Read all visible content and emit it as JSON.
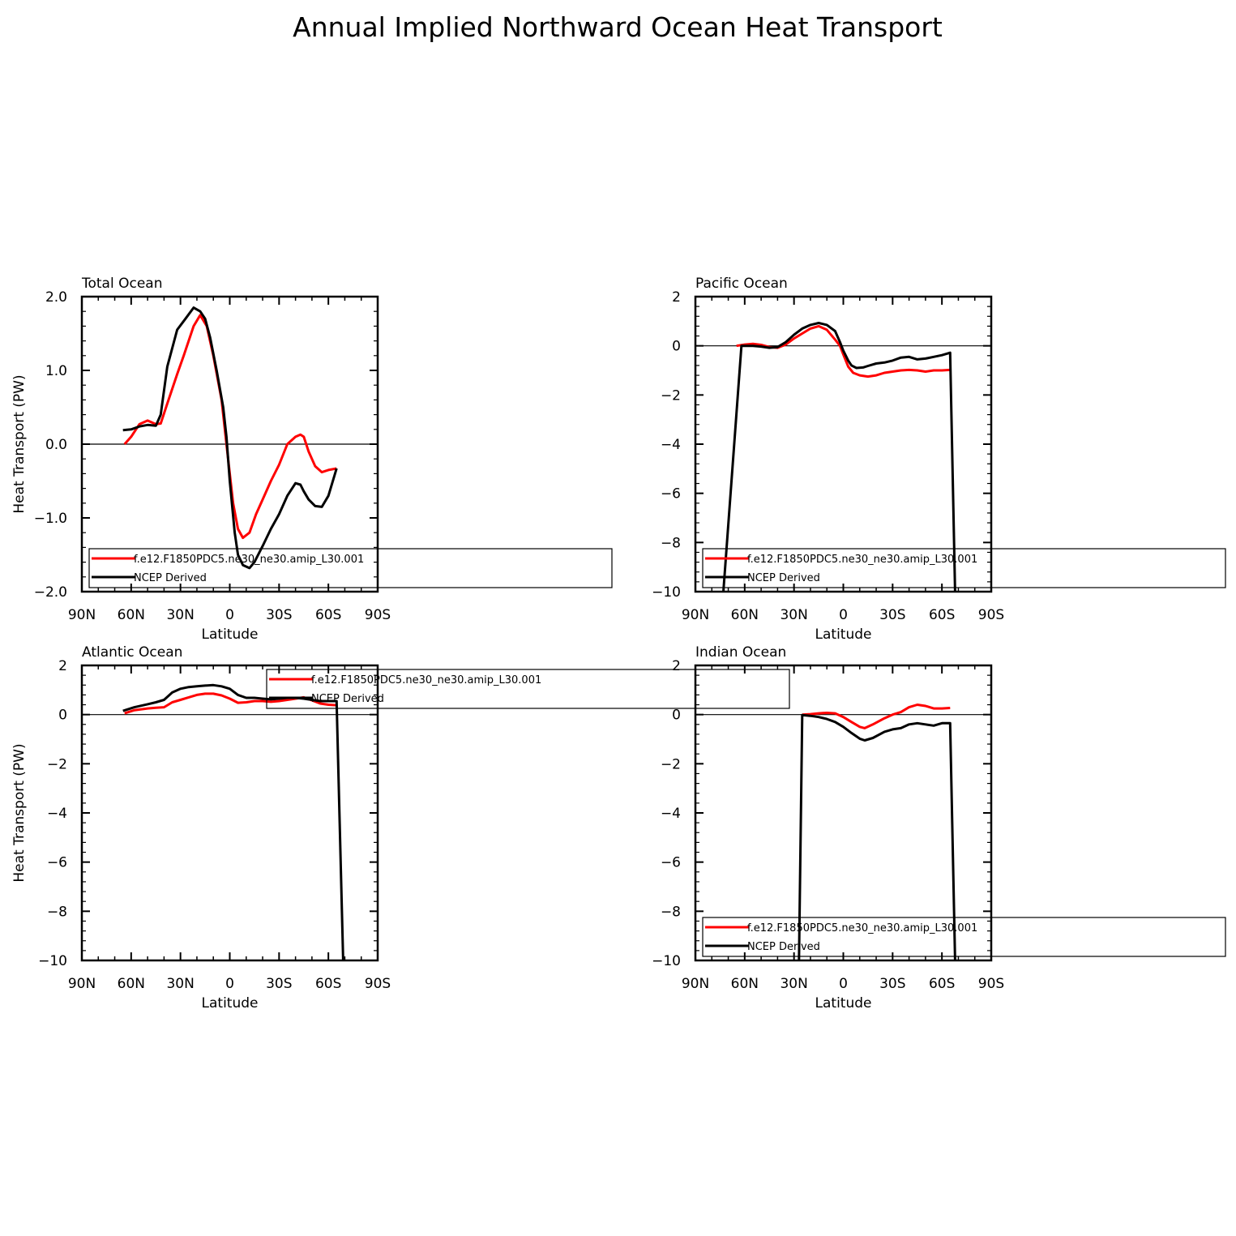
{
  "figure": {
    "title": "Annual Implied Northward Ocean Heat Transport"
  },
  "chart_data": [
    {
      "type": "line",
      "title": "Total Ocean",
      "xlabel": "Latitude",
      "ylabel": "Heat Transport (PW)",
      "xlim": [
        90,
        -90
      ],
      "ylim": [
        -2,
        2
      ],
      "xticks": [
        90,
        60,
        30,
        0,
        -30,
        -60,
        -90
      ],
      "xtick_labels": [
        "90N",
        "60N",
        "30N",
        "0",
        "30S",
        "60S",
        "90S"
      ],
      "yticks": [
        -2,
        -1,
        0,
        1,
        2
      ],
      "ytick_labels": [
        "−2.0",
        "−1.0",
        "0.0",
        "1.0",
        "2.0"
      ],
      "zero_line": true,
      "legend": [
        "f.e12.F1850PDC5.ne30_ne30.amip_L30.001",
        "NCEP Derived"
      ],
      "legend_position": "bottom-left",
      "series": [
        {
          "name": "f.e12.F1850PDC5.ne30_ne30.amip_L30.001",
          "color": "#ff0000",
          "x": [
            64,
            60,
            55,
            50,
            45,
            42,
            38,
            32,
            28,
            22,
            18,
            14,
            10,
            5,
            2,
            -2,
            -5,
            -8,
            -12,
            -16,
            -20,
            -25,
            -30,
            -35,
            -40,
            -43,
            -45,
            -48,
            -52,
            -56,
            -60,
            -65
          ],
          "y": [
            0,
            0.1,
            0.27,
            0.32,
            0.27,
            0.28,
            0.55,
            0.95,
            1.2,
            1.6,
            1.75,
            1.6,
            1.2,
            0.6,
            0.0,
            -0.8,
            -1.15,
            -1.27,
            -1.2,
            -0.95,
            -0.75,
            -0.5,
            -0.28,
            0.0,
            0.1,
            0.13,
            0.1,
            -0.1,
            -0.3,
            -0.38,
            -0.35,
            -0.33
          ]
        },
        {
          "name": "NCEP Derived",
          "color": "#000000",
          "x": [
            65,
            60,
            55,
            50,
            45,
            42,
            38,
            32,
            27,
            22,
            18,
            15,
            12,
            8,
            4,
            2,
            0,
            -3,
            -5,
            -8,
            -12,
            -15,
            -20,
            -25,
            -30,
            -35,
            -40,
            -43,
            -45,
            -48,
            -52,
            -56,
            -60,
            -65
          ],
          "y": [
            0.19,
            0.2,
            0.24,
            0.26,
            0.25,
            0.4,
            1.05,
            1.55,
            1.7,
            1.85,
            1.8,
            1.7,
            1.45,
            1.0,
            0.5,
            0.1,
            -0.5,
            -1.2,
            -1.5,
            -1.64,
            -1.68,
            -1.6,
            -1.38,
            -1.15,
            -0.95,
            -0.7,
            -0.53,
            -0.55,
            -0.64,
            -0.75,
            -0.84,
            -0.85,
            -0.7,
            -0.33
          ]
        }
      ]
    },
    {
      "type": "line",
      "title": "Pacific Ocean",
      "xlabel": "Latitude",
      "ylabel": "",
      "xlim": [
        90,
        -90
      ],
      "ylim": [
        -10,
        2
      ],
      "xticks": [
        90,
        60,
        30,
        0,
        -30,
        -60,
        -90
      ],
      "xtick_labels": [
        "90N",
        "60N",
        "30N",
        "0",
        "30S",
        "60S",
        "90S"
      ],
      "yticks": [
        -10,
        -8,
        -6,
        -4,
        -2,
        0,
        2
      ],
      "ytick_labels": [
        "−10",
        "−8",
        "−6",
        "−4",
        "−2",
        "0",
        "2"
      ],
      "zero_line": true,
      "legend": [
        "f.e12.F1850PDC5.ne30_ne30.amip_L30.001",
        "NCEP Derived"
      ],
      "legend_position": "bottom-left",
      "series": [
        {
          "name": "f.e12.F1850PDC5.ne30_ne30.amip_L30.001",
          "color": "#ff0000",
          "x": [
            65,
            60,
            55,
            50,
            45,
            40,
            35,
            30,
            25,
            20,
            15,
            10,
            5,
            2,
            0,
            -3,
            -6,
            -10,
            -15,
            -20,
            -25,
            -30,
            -35,
            -40,
            -45,
            -50,
            -55,
            -60,
            -65
          ],
          "y": [
            0,
            0.05,
            0.08,
            0.04,
            -0.05,
            -0.08,
            0.05,
            0.3,
            0.5,
            0.7,
            0.8,
            0.65,
            0.25,
            0.0,
            -0.35,
            -0.85,
            -1.1,
            -1.2,
            -1.25,
            -1.2,
            -1.1,
            -1.05,
            -1.0,
            -0.98,
            -1.0,
            -1.05,
            -1.0,
            -1.0,
            -0.98
          ]
        },
        {
          "name": "NCEP Derived",
          "color": "#000000",
          "x": [
            73,
            62,
            55,
            50,
            45,
            40,
            35,
            30,
            25,
            20,
            15,
            10,
            5,
            2,
            0,
            -3,
            -5,
            -8,
            -12,
            -15,
            -20,
            -25,
            -30,
            -35,
            -40,
            -45,
            -50,
            -55,
            -60,
            -65,
            -68
          ],
          "y": [
            -10,
            0,
            0,
            -0.03,
            -0.08,
            -0.05,
            0.15,
            0.45,
            0.7,
            0.85,
            0.93,
            0.85,
            0.6,
            0.15,
            -0.2,
            -0.6,
            -0.8,
            -0.9,
            -0.88,
            -0.82,
            -0.72,
            -0.68,
            -0.6,
            -0.48,
            -0.45,
            -0.55,
            -0.52,
            -0.45,
            -0.38,
            -0.28,
            -10
          ]
        }
      ]
    },
    {
      "type": "line",
      "title": "Atlantic Ocean",
      "xlabel": "Latitude",
      "ylabel": "Heat Transport (PW)",
      "xlim": [
        90,
        -90
      ],
      "ylim": [
        -10,
        2
      ],
      "xticks": [
        90,
        60,
        30,
        0,
        -30,
        -60,
        -90
      ],
      "xtick_labels": [
        "90N",
        "60N",
        "30N",
        "0",
        "30S",
        "60S",
        "90S"
      ],
      "yticks": [
        -10,
        -8,
        -6,
        -4,
        -2,
        0,
        2
      ],
      "ytick_labels": [
        "−10",
        "−8",
        "−6",
        "−4",
        "−2",
        "0",
        "2"
      ],
      "zero_line": true,
      "legend": [
        "f.e12.F1850PDC5.ne30_ne30.amip_L30.001",
        "NCEP Derived"
      ],
      "legend_position": "top-center",
      "series": [
        {
          "name": "f.e12.F1850PDC5.ne30_ne30.amip_L30.001",
          "color": "#ff0000",
          "x": [
            64,
            58,
            50,
            45,
            40,
            35,
            30,
            25,
            20,
            15,
            10,
            5,
            0,
            -5,
            -10,
            -15,
            -20,
            -25,
            -30,
            -35,
            -40,
            -45,
            -50,
            -55,
            -60,
            -65
          ],
          "y": [
            0.05,
            0.18,
            0.25,
            0.28,
            0.3,
            0.5,
            0.6,
            0.7,
            0.8,
            0.85,
            0.85,
            0.78,
            0.65,
            0.48,
            0.5,
            0.55,
            0.55,
            0.52,
            0.55,
            0.6,
            0.65,
            0.7,
            0.58,
            0.45,
            0.4,
            0.38
          ]
        },
        {
          "name": "NCEP Derived",
          "color": "#000000",
          "x": [
            65,
            58,
            50,
            45,
            40,
            35,
            30,
            25,
            20,
            15,
            10,
            5,
            0,
            -5,
            -10,
            -15,
            -20,
            -25,
            -30,
            -35,
            -40,
            -45,
            -50,
            -55,
            -60,
            -65,
            -69
          ],
          "y": [
            0.15,
            0.3,
            0.42,
            0.5,
            0.6,
            0.9,
            1.05,
            1.12,
            1.15,
            1.18,
            1.2,
            1.15,
            1.05,
            0.8,
            0.68,
            0.68,
            0.65,
            0.62,
            0.65,
            0.68,
            0.68,
            0.65,
            0.6,
            0.55,
            0.55,
            0.55,
            -10
          ]
        }
      ]
    },
    {
      "type": "line",
      "title": "Indian Ocean",
      "xlabel": "Latitude",
      "ylabel": "",
      "xlim": [
        90,
        -90
      ],
      "ylim": [
        -10,
        2
      ],
      "xticks": [
        90,
        60,
        30,
        0,
        -30,
        -60,
        -90
      ],
      "xtick_labels": [
        "90N",
        "60N",
        "30N",
        "0",
        "30S",
        "60S",
        "90S"
      ],
      "yticks": [
        -10,
        -8,
        -6,
        -4,
        -2,
        0,
        2
      ],
      "ytick_labels": [
        "−10",
        "−8",
        "−6",
        "−4",
        "−2",
        "0",
        "2"
      ],
      "zero_line": true,
      "legend": [
        "f.e12.F1850PDC5.ne30_ne30.amip_L30.001",
        "NCEP Derived"
      ],
      "legend_position": "bottom-left",
      "series": [
        {
          "name": "f.e12.F1850PDC5.ne30_ne30.amip_L30.001",
          "color": "#ff0000",
          "x": [
            25,
            20,
            15,
            10,
            5,
            0,
            -5,
            -10,
            -13,
            -18,
            -25,
            -30,
            -35,
            -40,
            -45,
            -50,
            -55,
            -60,
            -65
          ],
          "y": [
            0,
            0.02,
            0.05,
            0.07,
            0.05,
            -0.1,
            -0.3,
            -0.5,
            -0.55,
            -0.4,
            -0.15,
            0.0,
            0.1,
            0.3,
            0.4,
            0.35,
            0.25,
            0.25,
            0.27
          ]
        },
        {
          "name": "NCEP Derived",
          "color": "#000000",
          "x": [
            27,
            25,
            20,
            15,
            10,
            5,
            0,
            -5,
            -10,
            -13,
            -18,
            -25,
            -30,
            -35,
            -40,
            -45,
            -50,
            -55,
            -60,
            -65,
            -68
          ],
          "y": [
            -10,
            -0.02,
            -0.05,
            -0.1,
            -0.18,
            -0.3,
            -0.5,
            -0.75,
            -0.98,
            -1.05,
            -0.95,
            -0.7,
            -0.6,
            -0.55,
            -0.4,
            -0.35,
            -0.4,
            -0.45,
            -0.35,
            -0.35,
            -10
          ]
        }
      ]
    }
  ]
}
